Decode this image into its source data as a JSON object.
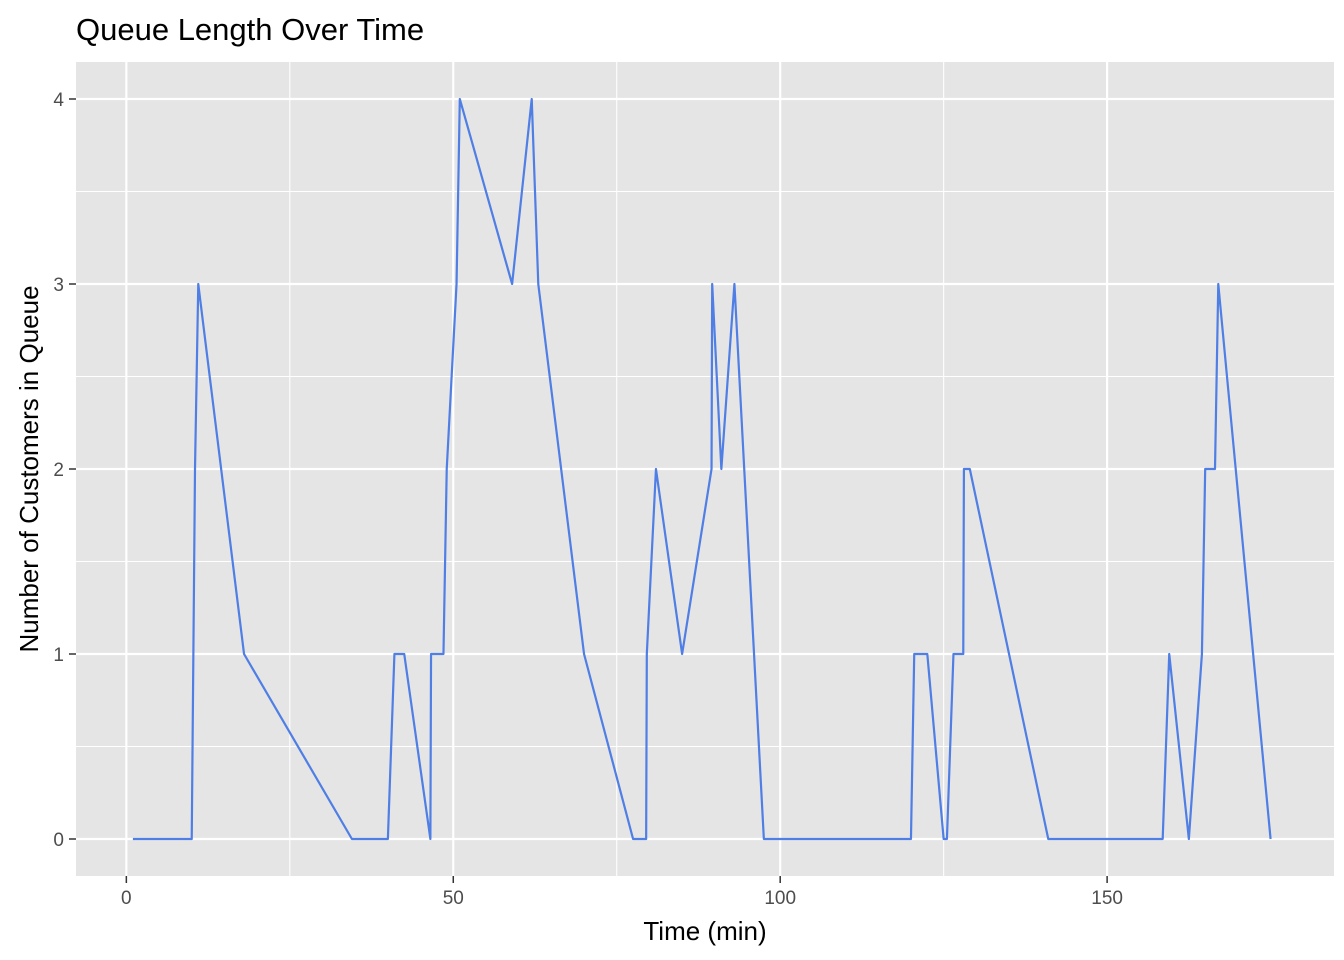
{
  "chart_data": {
    "type": "line",
    "title": "Queue Length Over Time",
    "xlabel": "Time (min)",
    "ylabel": "Number of Customers in Queue",
    "xlim": [
      -7.7,
      184.7
    ],
    "ylim": [
      -0.2,
      4.2
    ],
    "x_ticks": [
      0,
      50,
      100,
      150
    ],
    "x_tick_labels": [
      "0",
      "50",
      "100",
      "150"
    ],
    "y_ticks": [
      0,
      1,
      2,
      3,
      4
    ],
    "y_tick_labels": [
      "0",
      "1",
      "2",
      "3",
      "4"
    ],
    "grid": true,
    "line_color": "#4f7ee5",
    "panel_color": "#e5e5e5",
    "grid_color": "#ffffff",
    "series": [
      {
        "x": [
          1,
          10,
          10.5,
          11,
          18,
          34.5,
          40,
          41,
          42.5,
          46.5,
          46.6,
          48.5,
          49,
          50.5,
          51,
          59,
          62,
          63,
          70,
          77.5,
          79.5,
          79.6,
          81,
          85,
          89.5,
          89.6,
          91,
          93,
          97.5,
          120,
          120.5,
          122.5,
          125,
          125.5,
          126.5,
          128,
          128.1,
          129,
          135,
          141,
          158.5,
          159.5,
          162.5,
          164.5,
          165,
          166.5,
          167,
          175
        ],
        "y": [
          0,
          0,
          2,
          3,
          1,
          0,
          0,
          1,
          1,
          0,
          1,
          1,
          2,
          3,
          4,
          3,
          4,
          3,
          1,
          0,
          0,
          1,
          2,
          1,
          2,
          3,
          2,
          3,
          0,
          0,
          1,
          1,
          0,
          0,
          1,
          1,
          2,
          2,
          1,
          0,
          0,
          1,
          0,
          1,
          2,
          2,
          3,
          0
        ]
      }
    ]
  }
}
